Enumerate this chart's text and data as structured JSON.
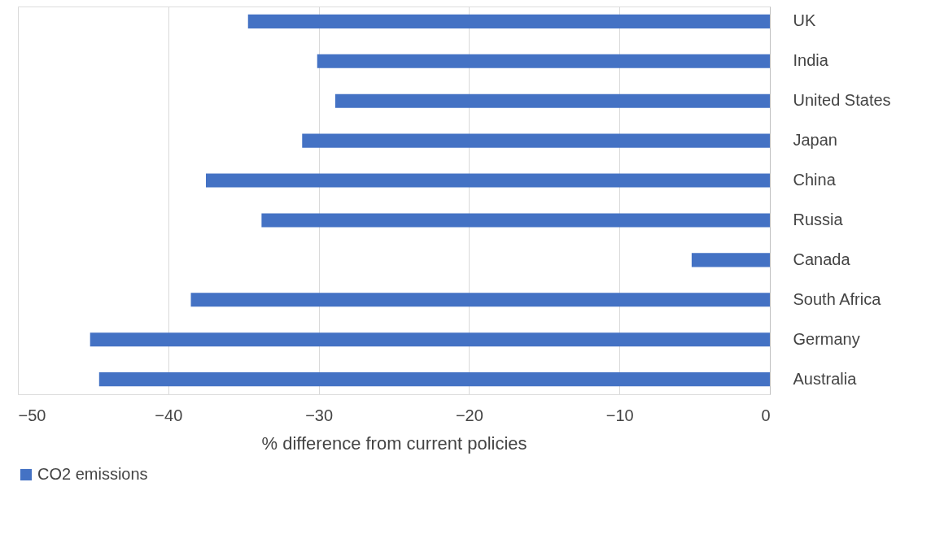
{
  "chart_data": {
    "type": "bar",
    "orientation": "horizontal",
    "xlabel": "% difference from current policies",
    "categories": [
      "UK",
      "India",
      "United States",
      "Japan",
      "China",
      "Russia",
      "Canada",
      "South Africa",
      "Germany",
      "Australia"
    ],
    "series": [
      {
        "name": "CO2 emissions",
        "color": "#4472c4",
        "values": [
          -34.7,
          -30.1,
          -28.9,
          -31.1,
          -37.5,
          -33.8,
          -5.2,
          -38.5,
          -45.2,
          -44.6
        ]
      }
    ],
    "xlim": [
      -50,
      0
    ],
    "xticks": [
      -50,
      -40,
      -30,
      -20,
      -10,
      0
    ],
    "grid": "x",
    "legend": "bottom"
  }
}
